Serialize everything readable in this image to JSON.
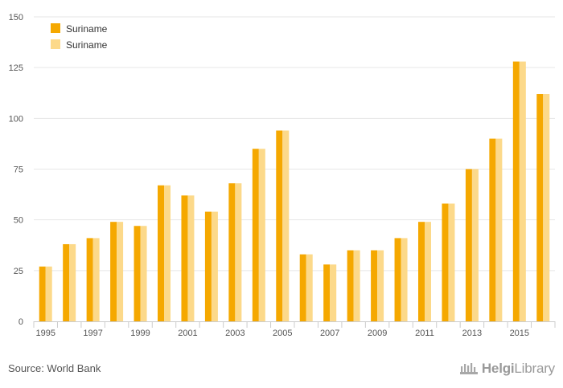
{
  "chart_data": {
    "type": "bar",
    "categories": [
      "1995",
      "1996",
      "1997",
      "1998",
      "1999",
      "2000",
      "2001",
      "2002",
      "2003",
      "2004",
      "2005",
      "2006",
      "2007",
      "2008",
      "2009",
      "2010",
      "2011",
      "2012",
      "2013",
      "2014",
      "2015",
      "2016"
    ],
    "x_tick_labels": [
      "1995",
      "1997",
      "1999",
      "2001",
      "2003",
      "2005",
      "2007",
      "2009",
      "2011",
      "2013",
      "2015"
    ],
    "series": [
      {
        "name": "Suriname",
        "color": "#f5a800",
        "values": [
          27,
          38,
          41,
          49,
          47,
          67,
          62,
          54,
          68,
          85,
          94,
          33,
          28,
          35,
          35,
          41,
          49,
          58,
          75,
          90,
          128,
          112
        ]
      },
      {
        "name": "Suriname",
        "color": "#fcd98a",
        "values": [
          27,
          38,
          41,
          49,
          47,
          67,
          62,
          54,
          68,
          85,
          94,
          33,
          28,
          35,
          35,
          41,
          49,
          58,
          75,
          90,
          128,
          112
        ]
      }
    ],
    "ylim": [
      0,
      150
    ],
    "y_ticks": [
      0,
      25,
      50,
      75,
      100,
      125,
      150
    ],
    "grid": true,
    "legend_position": "top-left"
  },
  "footer": {
    "source": "Source: World Bank",
    "brand_strong": "Helgi",
    "brand_light": "Library"
  },
  "icons": {
    "brand_logo": "helgilibrary-logo-icon"
  }
}
